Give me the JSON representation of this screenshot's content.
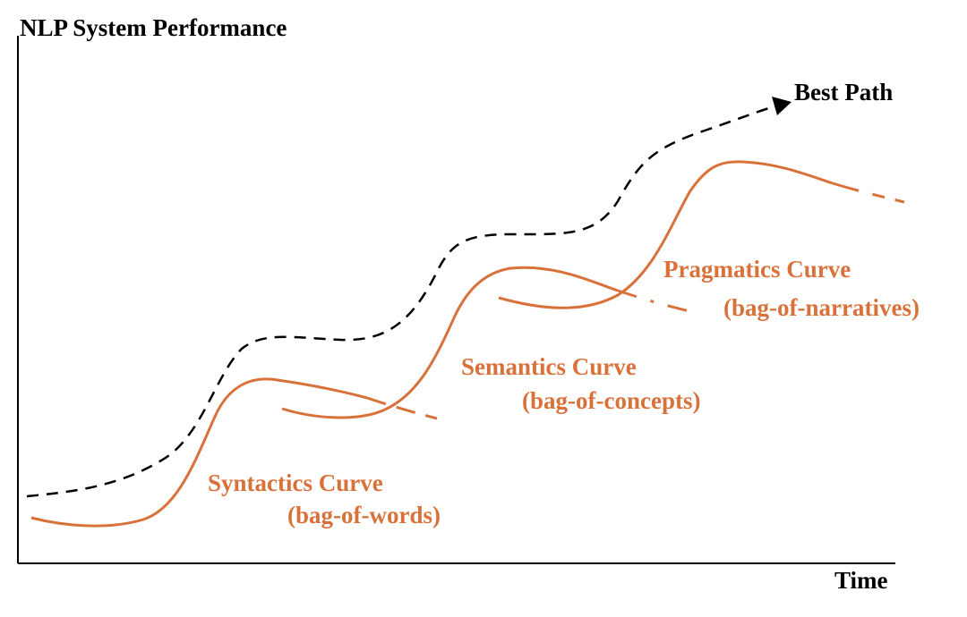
{
  "axes": {
    "y_label": "NLP System Performance",
    "x_label": "Time"
  },
  "best_path": {
    "label": "Best Path"
  },
  "curves": [
    {
      "name": "Syntactics Curve",
      "subtitle": "(bag-of-words)"
    },
    {
      "name": "Semantics Curve",
      "subtitle": "(bag-of-concepts)"
    },
    {
      "name": "Pragmatics Curve",
      "subtitle": "(bag-of-narratives)"
    }
  ],
  "colors": {
    "curve": "#D9713A",
    "axis": "#000000",
    "best_path": "#000000"
  }
}
